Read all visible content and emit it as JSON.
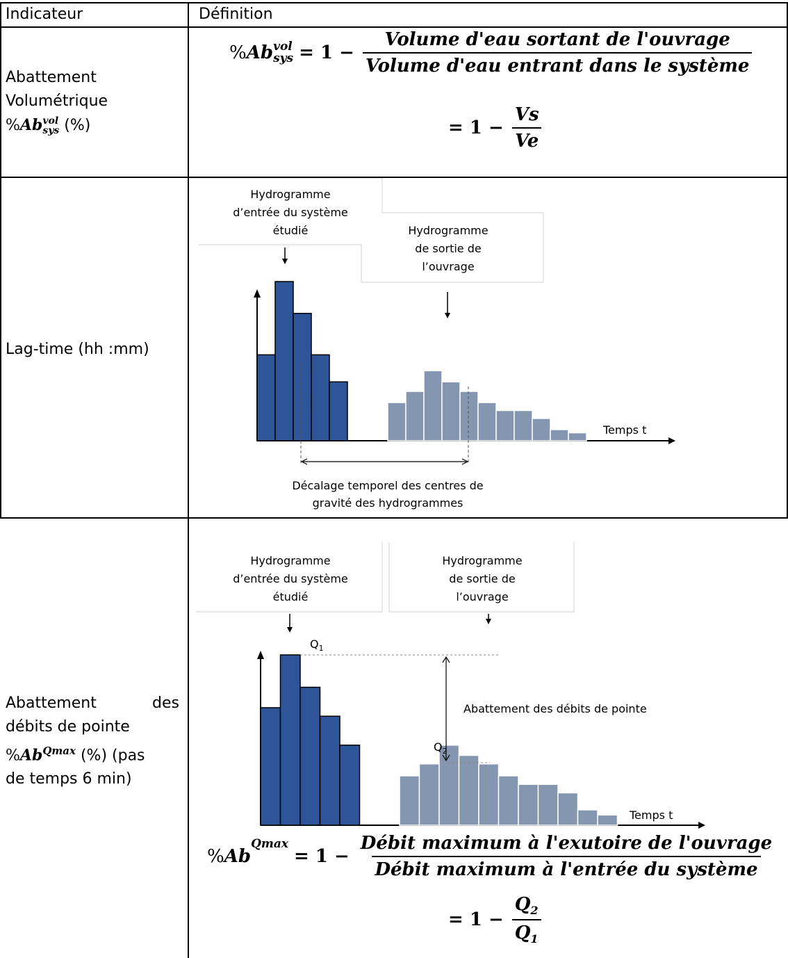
{
  "header": {
    "col1": "Indicateur",
    "col2": "Définition"
  },
  "row1": {
    "label": [
      "Abattement",
      "Volumétrique"
    ],
    "label_sym_prefix": "%",
    "label_sym_base": "Ab",
    "label_sym_sup": "vol",
    "label_sym_sub": "sys",
    "label_unit": "(%)",
    "formula": {
      "prefix": "%",
      "base": "Ab",
      "sup": "vol",
      "sub": "sys",
      "eq": "= 1 −",
      "num": "Volume d'eau sortant de l'ouvrage",
      "den": "Volume d'eau entrant dans le système",
      "eq2": "= 1 −",
      "num2": "Vs",
      "den2": "Ve"
    }
  },
  "row2": {
    "label": "Lag-time (hh :mm)",
    "diagram": {
      "inlet_label": [
        "Hydrogramme",
        "d’entrée du système",
        "étudié"
      ],
      "outlet_label": [
        "Hydrogramme",
        "de sortie de",
        "l’ouvrage"
      ],
      "axis_label": "Temps t",
      "shift_label": [
        "Décalage temporel des centres de",
        "gravité des hydrogrammes"
      ],
      "inlet_bars": [
        0.54,
        1.0,
        0.8,
        0.54,
        0.37
      ],
      "outlet_bars": [
        0.24,
        0.31,
        0.44,
        0.37,
        0.31,
        0.24,
        0.19,
        0.19,
        0.14,
        0.07,
        0.05
      ],
      "inlet_color": "#2e5597",
      "outlet_color": "#8496b0"
    }
  },
  "row3": {
    "label": [
      "Abattement",
      "des",
      "débits de pointe"
    ],
    "label_sym_prefix": "%",
    "label_sym_base": "Ab",
    "label_sym_sup": "Qmax",
    "label_unit": "(%) (pas",
    "label_tail": "de temps 6 min)",
    "diagram": {
      "inlet_label": [
        "Hydrogramme",
        "d’entrée du système",
        "étudié"
      ],
      "outlet_label": [
        "Hydrogramme",
        "de sortie de",
        "l’ouvrage"
      ],
      "q1": "Q",
      "q1_sub": "1",
      "q2": "Q",
      "q2_sub": "2",
      "peak_label": "Abattement des débits de pointe",
      "axis_label": "Temps t",
      "inlet_bars": [
        0.69,
        1.0,
        0.81,
        0.64,
        0.47
      ],
      "outlet_bars": [
        0.29,
        0.36,
        0.47,
        0.41,
        0.36,
        0.29,
        0.24,
        0.24,
        0.19,
        0.09,
        0.06
      ],
      "inlet_color": "#2e5597",
      "outlet_color": "#8496b0"
    },
    "formula": {
      "prefix": "%",
      "base": "Ab",
      "sup": "Qmax",
      "eq": "= 1 −",
      "num": "Débit maximum à l'exutoire de l'ouvrage",
      "den": "Débit maximum à l'entrée du système",
      "eq2": "= 1 −",
      "num2_base": "Q",
      "num2_sub": "2",
      "den2_base": "Q",
      "den2_sub": "1"
    }
  }
}
